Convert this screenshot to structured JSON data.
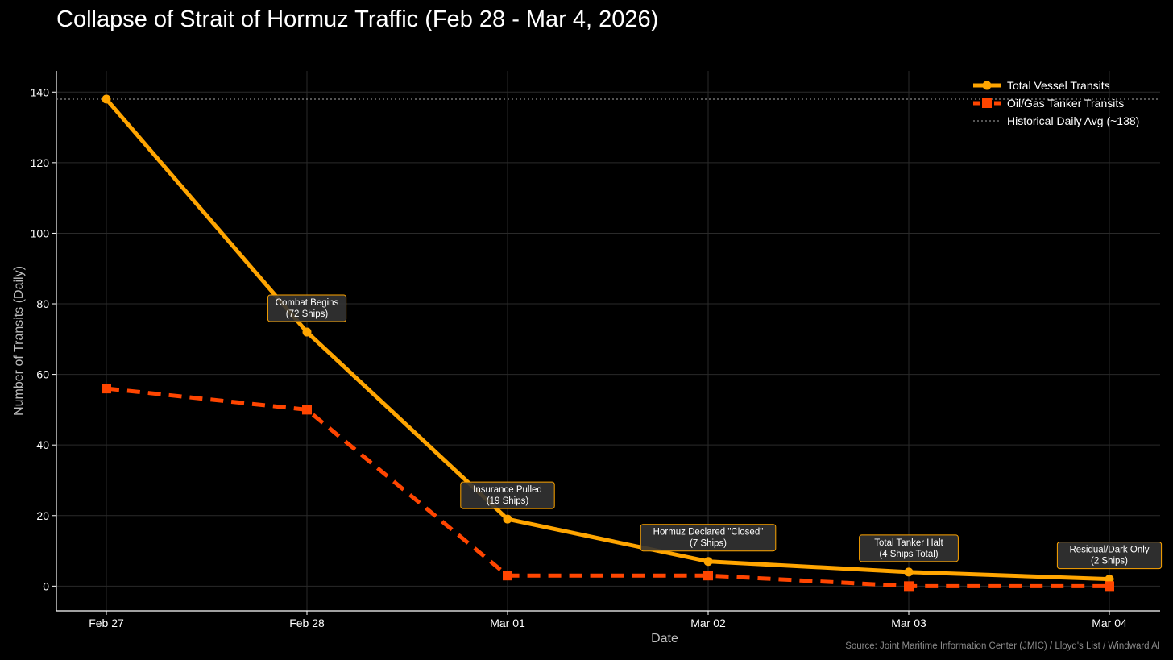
{
  "chart_data": {
    "type": "line",
    "title": "Collapse of Strait of Hormuz Traffic (Feb 28 - Mar 4, 2026)",
    "xlabel": "Date",
    "ylabel": "Number of Transits (Daily)",
    "categories": [
      "Feb 27",
      "Feb 28",
      "Mar 01",
      "Mar 02",
      "Mar 03",
      "Mar 04"
    ],
    "ylim": [
      -7,
      146
    ],
    "yticks": [
      0,
      20,
      40,
      60,
      80,
      100,
      120,
      140
    ],
    "grid": true,
    "legend_position": "top-right",
    "series": [
      {
        "name": "Total Vessel Transits",
        "values": [
          138,
          72,
          19,
          7,
          4,
          2
        ],
        "color": "#FFA500",
        "style": "solid",
        "marker": "circle"
      },
      {
        "name": "Oil/Gas Tanker Transits",
        "values": [
          56,
          50,
          3,
          3,
          0,
          0
        ],
        "color": "#FF4500",
        "style": "dashed",
        "marker": "square"
      }
    ],
    "reference_line": {
      "label": "Historical Daily Avg (~138)",
      "value": 138,
      "color": "#888888",
      "style": "dotted"
    },
    "annotations": [
      {
        "x": "Feb 28",
        "y": 72,
        "lines": [
          "Combat Begins",
          "(72 Ships)"
        ]
      },
      {
        "x": "Mar 01",
        "y": 19,
        "lines": [
          "Insurance Pulled",
          "(19 Ships)"
        ]
      },
      {
        "x": "Mar 02",
        "y": 7,
        "lines": [
          "Hormuz Declared \"Closed\"",
          "(7 Ships)"
        ]
      },
      {
        "x": "Mar 03",
        "y": 4,
        "lines": [
          "Total Tanker Halt",
          "(4 Ships Total)"
        ]
      },
      {
        "x": "Mar 04",
        "y": 2,
        "lines": [
          "Residual/Dark Only",
          "(2 Ships)"
        ]
      }
    ],
    "source": "Source: Joint Maritime Information Center (JMIC) / Lloyd's List / Windward AI"
  }
}
